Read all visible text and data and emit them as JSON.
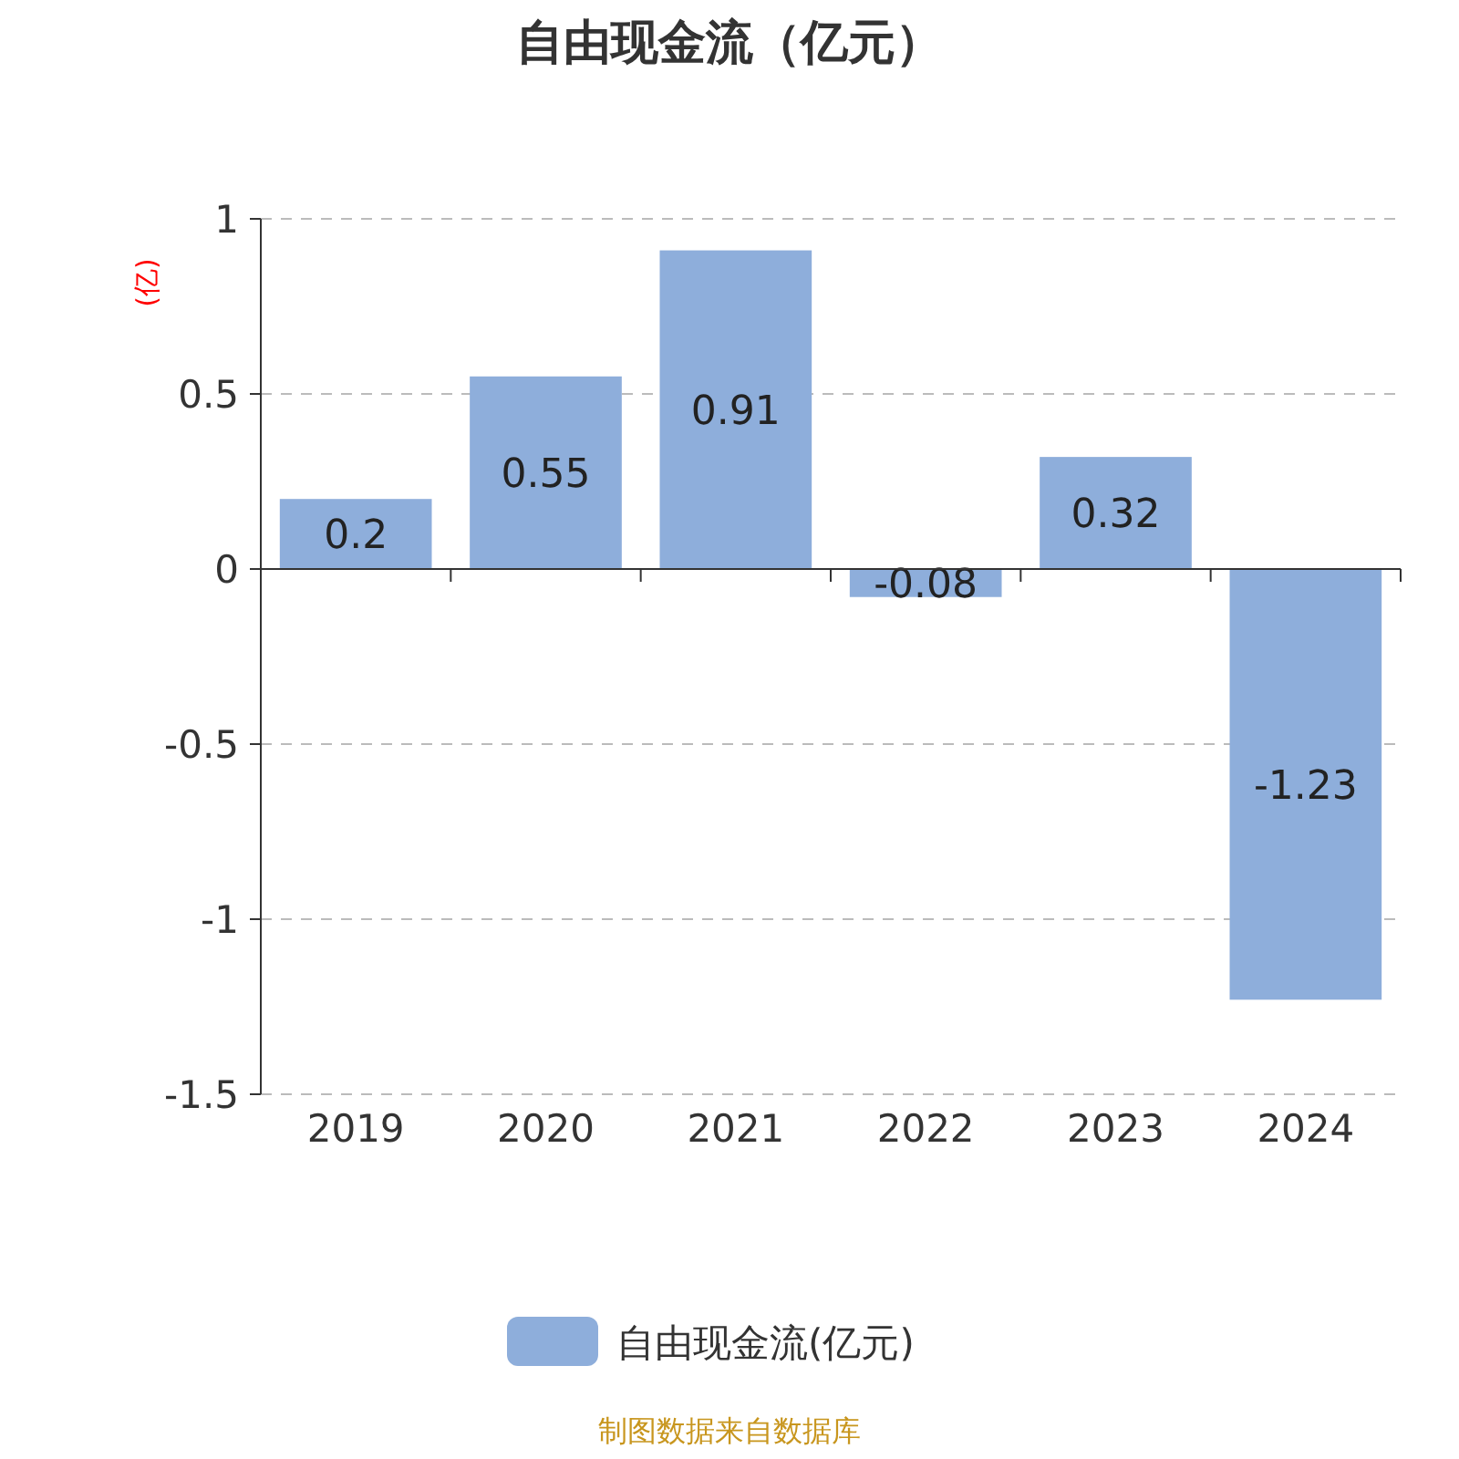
{
  "chart_data": {
    "type": "bar",
    "title": "自由现金流（亿元）",
    "ylabel": "(亿)",
    "categories": [
      "2019",
      "2020",
      "2021",
      "2022",
      "2023",
      "2024"
    ],
    "series": [
      {
        "name": "自由现金流(亿元)",
        "color": "#8eaedb",
        "values": [
          0.2,
          0.55,
          0.91,
          -0.08,
          0.32,
          -1.23
        ]
      }
    ],
    "ylim": [
      -1.5,
      1
    ],
    "yticks": [
      -1.5,
      -1,
      -0.5,
      0,
      0.5,
      1
    ],
    "grid": "y",
    "legend": "bottom",
    "data_labels": true,
    "annotations": [
      "制图数据来自数据库"
    ]
  }
}
